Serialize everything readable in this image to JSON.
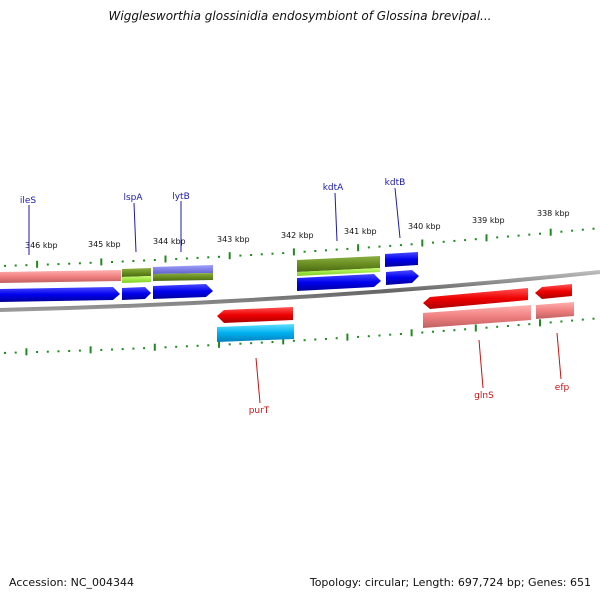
{
  "title": "Wigglesworthia glossinidia endosymbiont of Glossina brevipal...",
  "footer": {
    "accession": "Accession: NC_004344",
    "topology": "Topology: circular; Length: 697,724 bp; Genes: 651"
  },
  "colors": {
    "backbone": "#7a7a7a",
    "tick": "#1f8a1f",
    "forward_label": "#1a1ab0",
    "reverse_label": "#cc1111"
  },
  "scale_upper": [
    "346 kbp",
    "345 kbp",
    "344 kbp",
    "343 kbp",
    "342 kbp",
    "341 kbp",
    "340 kbp",
    "339 kbp",
    "338 kbp"
  ],
  "gene_labels": [
    {
      "name": "ileS",
      "strand": "forward"
    },
    {
      "name": "lspA",
      "strand": "forward"
    },
    {
      "name": "lytB",
      "strand": "forward"
    },
    {
      "name": "kdtA",
      "strand": "forward"
    },
    {
      "name": "kdtB",
      "strand": "forward"
    },
    {
      "name": "purT",
      "strand": "reverse"
    },
    {
      "name": "glnS",
      "strand": "reverse"
    },
    {
      "name": "efp",
      "strand": "reverse"
    }
  ]
}
